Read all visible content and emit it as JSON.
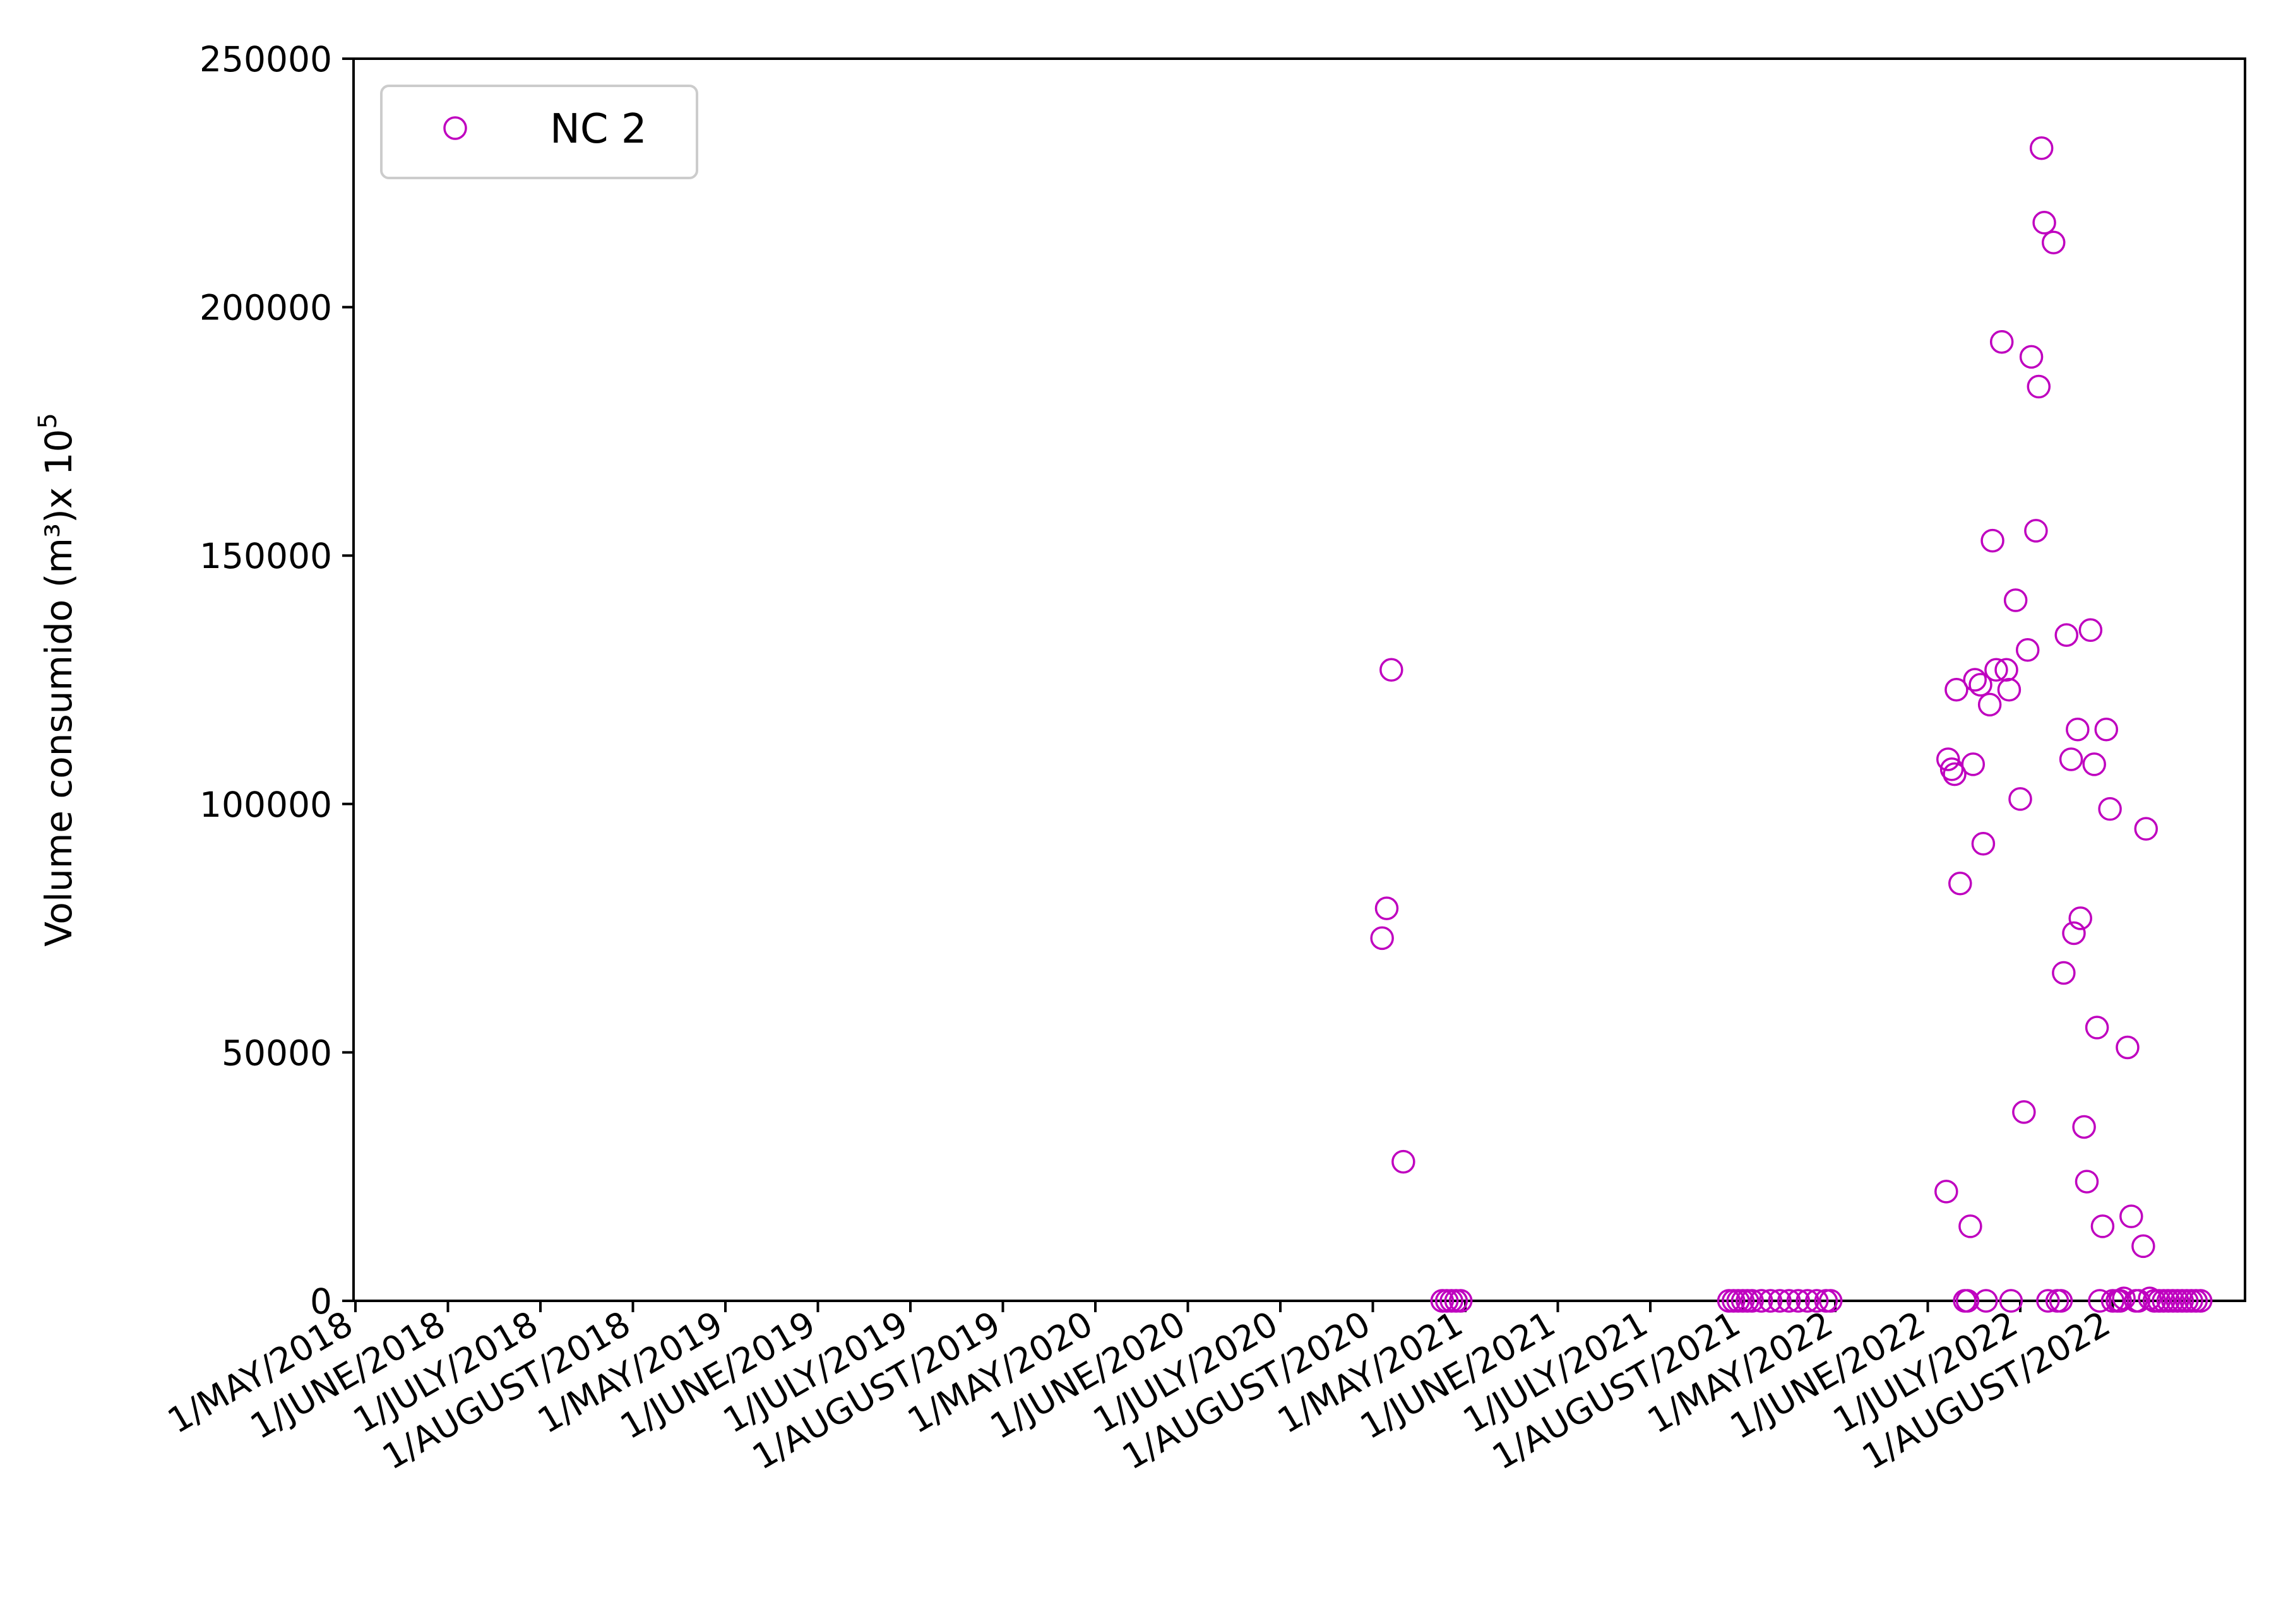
{
  "chart_data": {
    "type": "scatter",
    "xlabel": "",
    "ylabel": "Volume consumido (m³)x 10",
    "ylabel_exponent": "5",
    "ylim": [
      0,
      250000
    ],
    "yticks": [
      0,
      50000,
      100000,
      150000,
      200000,
      250000
    ],
    "ytick_labels": [
      "0",
      "50000",
      "100000",
      "150000",
      "200000",
      "250000"
    ],
    "xtick_labels": [
      "1/MAY/2018",
      "1/JUNE/2018",
      "1/JULY/2018",
      "1/AUGUST/2018",
      "1/MAY/2019",
      "1/JUNE/2019",
      "1/JULY/2019",
      "1/AUGUST/2019",
      "1/MAY/2020",
      "1/JUNE/2020",
      "1/JULY/2020",
      "1/AUGUST/2020",
      "1/MAY/2021",
      "1/JUNE/2021",
      "1/JULY/2021",
      "1/AUGUST/2021",
      "1/MAY/2022",
      "1/JUNE/2022",
      "1/JULY/2022",
      "1/AUGUST/2022"
    ],
    "xlim": [
      0,
      20.5
    ],
    "grid": false,
    "legend_position": "top-left",
    "marker": "open-circle",
    "series": [
      {
        "name": "NC 2",
        "color": "#bf00bf",
        "points": [
          [
            11.1,
            73000
          ],
          [
            11.15,
            79000
          ],
          [
            11.2,
            127000
          ],
          [
            11.33,
            28000
          ],
          [
            11.75,
            0
          ],
          [
            11.8,
            0
          ],
          [
            11.85,
            0
          ],
          [
            11.9,
            0
          ],
          [
            11.95,
            0
          ],
          [
            14.85,
            0
          ],
          [
            14.9,
            0
          ],
          [
            14.95,
            0
          ],
          [
            15.0,
            0
          ],
          [
            15.05,
            0
          ],
          [
            15.1,
            0
          ],
          [
            15.2,
            0
          ],
          [
            15.3,
            0
          ],
          [
            15.4,
            0
          ],
          [
            15.5,
            0
          ],
          [
            15.6,
            0
          ],
          [
            15.7,
            0
          ],
          [
            15.8,
            0
          ],
          [
            15.9,
            0
          ],
          [
            15.95,
            0
          ],
          [
            17.2,
            22000
          ],
          [
            17.22,
            109000
          ],
          [
            17.26,
            107000
          ],
          [
            17.29,
            106000
          ],
          [
            17.31,
            123000
          ],
          [
            17.35,
            84000
          ],
          [
            17.4,
            0
          ],
          [
            17.43,
            0
          ],
          [
            17.46,
            15000
          ],
          [
            17.49,
            108000
          ],
          [
            17.51,
            125000
          ],
          [
            17.57,
            124000
          ],
          [
            17.6,
            92000
          ],
          [
            17.63,
            0
          ],
          [
            17.67,
            120000
          ],
          [
            17.7,
            153000
          ],
          [
            17.74,
            127000
          ],
          [
            17.8,
            193000
          ],
          [
            17.85,
            127000
          ],
          [
            17.88,
            123000
          ],
          [
            17.9,
            0
          ],
          [
            17.95,
            141000
          ],
          [
            18.0,
            101000
          ],
          [
            18.04,
            38000
          ],
          [
            18.08,
            131000
          ],
          [
            18.12,
            190000
          ],
          [
            18.17,
            155000
          ],
          [
            18.2,
            184000
          ],
          [
            18.23,
            232000
          ],
          [
            18.26,
            217000
          ],
          [
            18.3,
            0
          ],
          [
            18.36,
            213000
          ],
          [
            18.4,
            0
          ],
          [
            18.44,
            0
          ],
          [
            18.47,
            66000
          ],
          [
            18.5,
            134000
          ],
          [
            18.55,
            109000
          ],
          [
            18.58,
            74000
          ],
          [
            18.62,
            115000
          ],
          [
            18.65,
            77000
          ],
          [
            18.69,
            35000
          ],
          [
            18.72,
            24000
          ],
          [
            18.76,
            135000
          ],
          [
            18.8,
            108000
          ],
          [
            18.83,
            55000
          ],
          [
            18.86,
            0
          ],
          [
            18.89,
            15000
          ],
          [
            18.93,
            115000
          ],
          [
            18.97,
            99000
          ],
          [
            19.0,
            0
          ],
          [
            19.05,
            0
          ],
          [
            19.08,
            0
          ],
          [
            19.12,
            500
          ],
          [
            19.16,
            51000
          ],
          [
            19.2,
            17000
          ],
          [
            19.25,
            0
          ],
          [
            19.28,
            0
          ],
          [
            19.33,
            11000
          ],
          [
            19.36,
            95000
          ],
          [
            19.4,
            500
          ],
          [
            19.45,
            0
          ],
          [
            19.5,
            0
          ],
          [
            19.55,
            0
          ],
          [
            19.6,
            0
          ],
          [
            19.65,
            0
          ],
          [
            19.7,
            0
          ],
          [
            19.75,
            0
          ],
          [
            19.8,
            0
          ],
          [
            19.85,
            0
          ],
          [
            19.9,
            0
          ],
          [
            19.95,
            0
          ]
        ]
      }
    ]
  }
}
